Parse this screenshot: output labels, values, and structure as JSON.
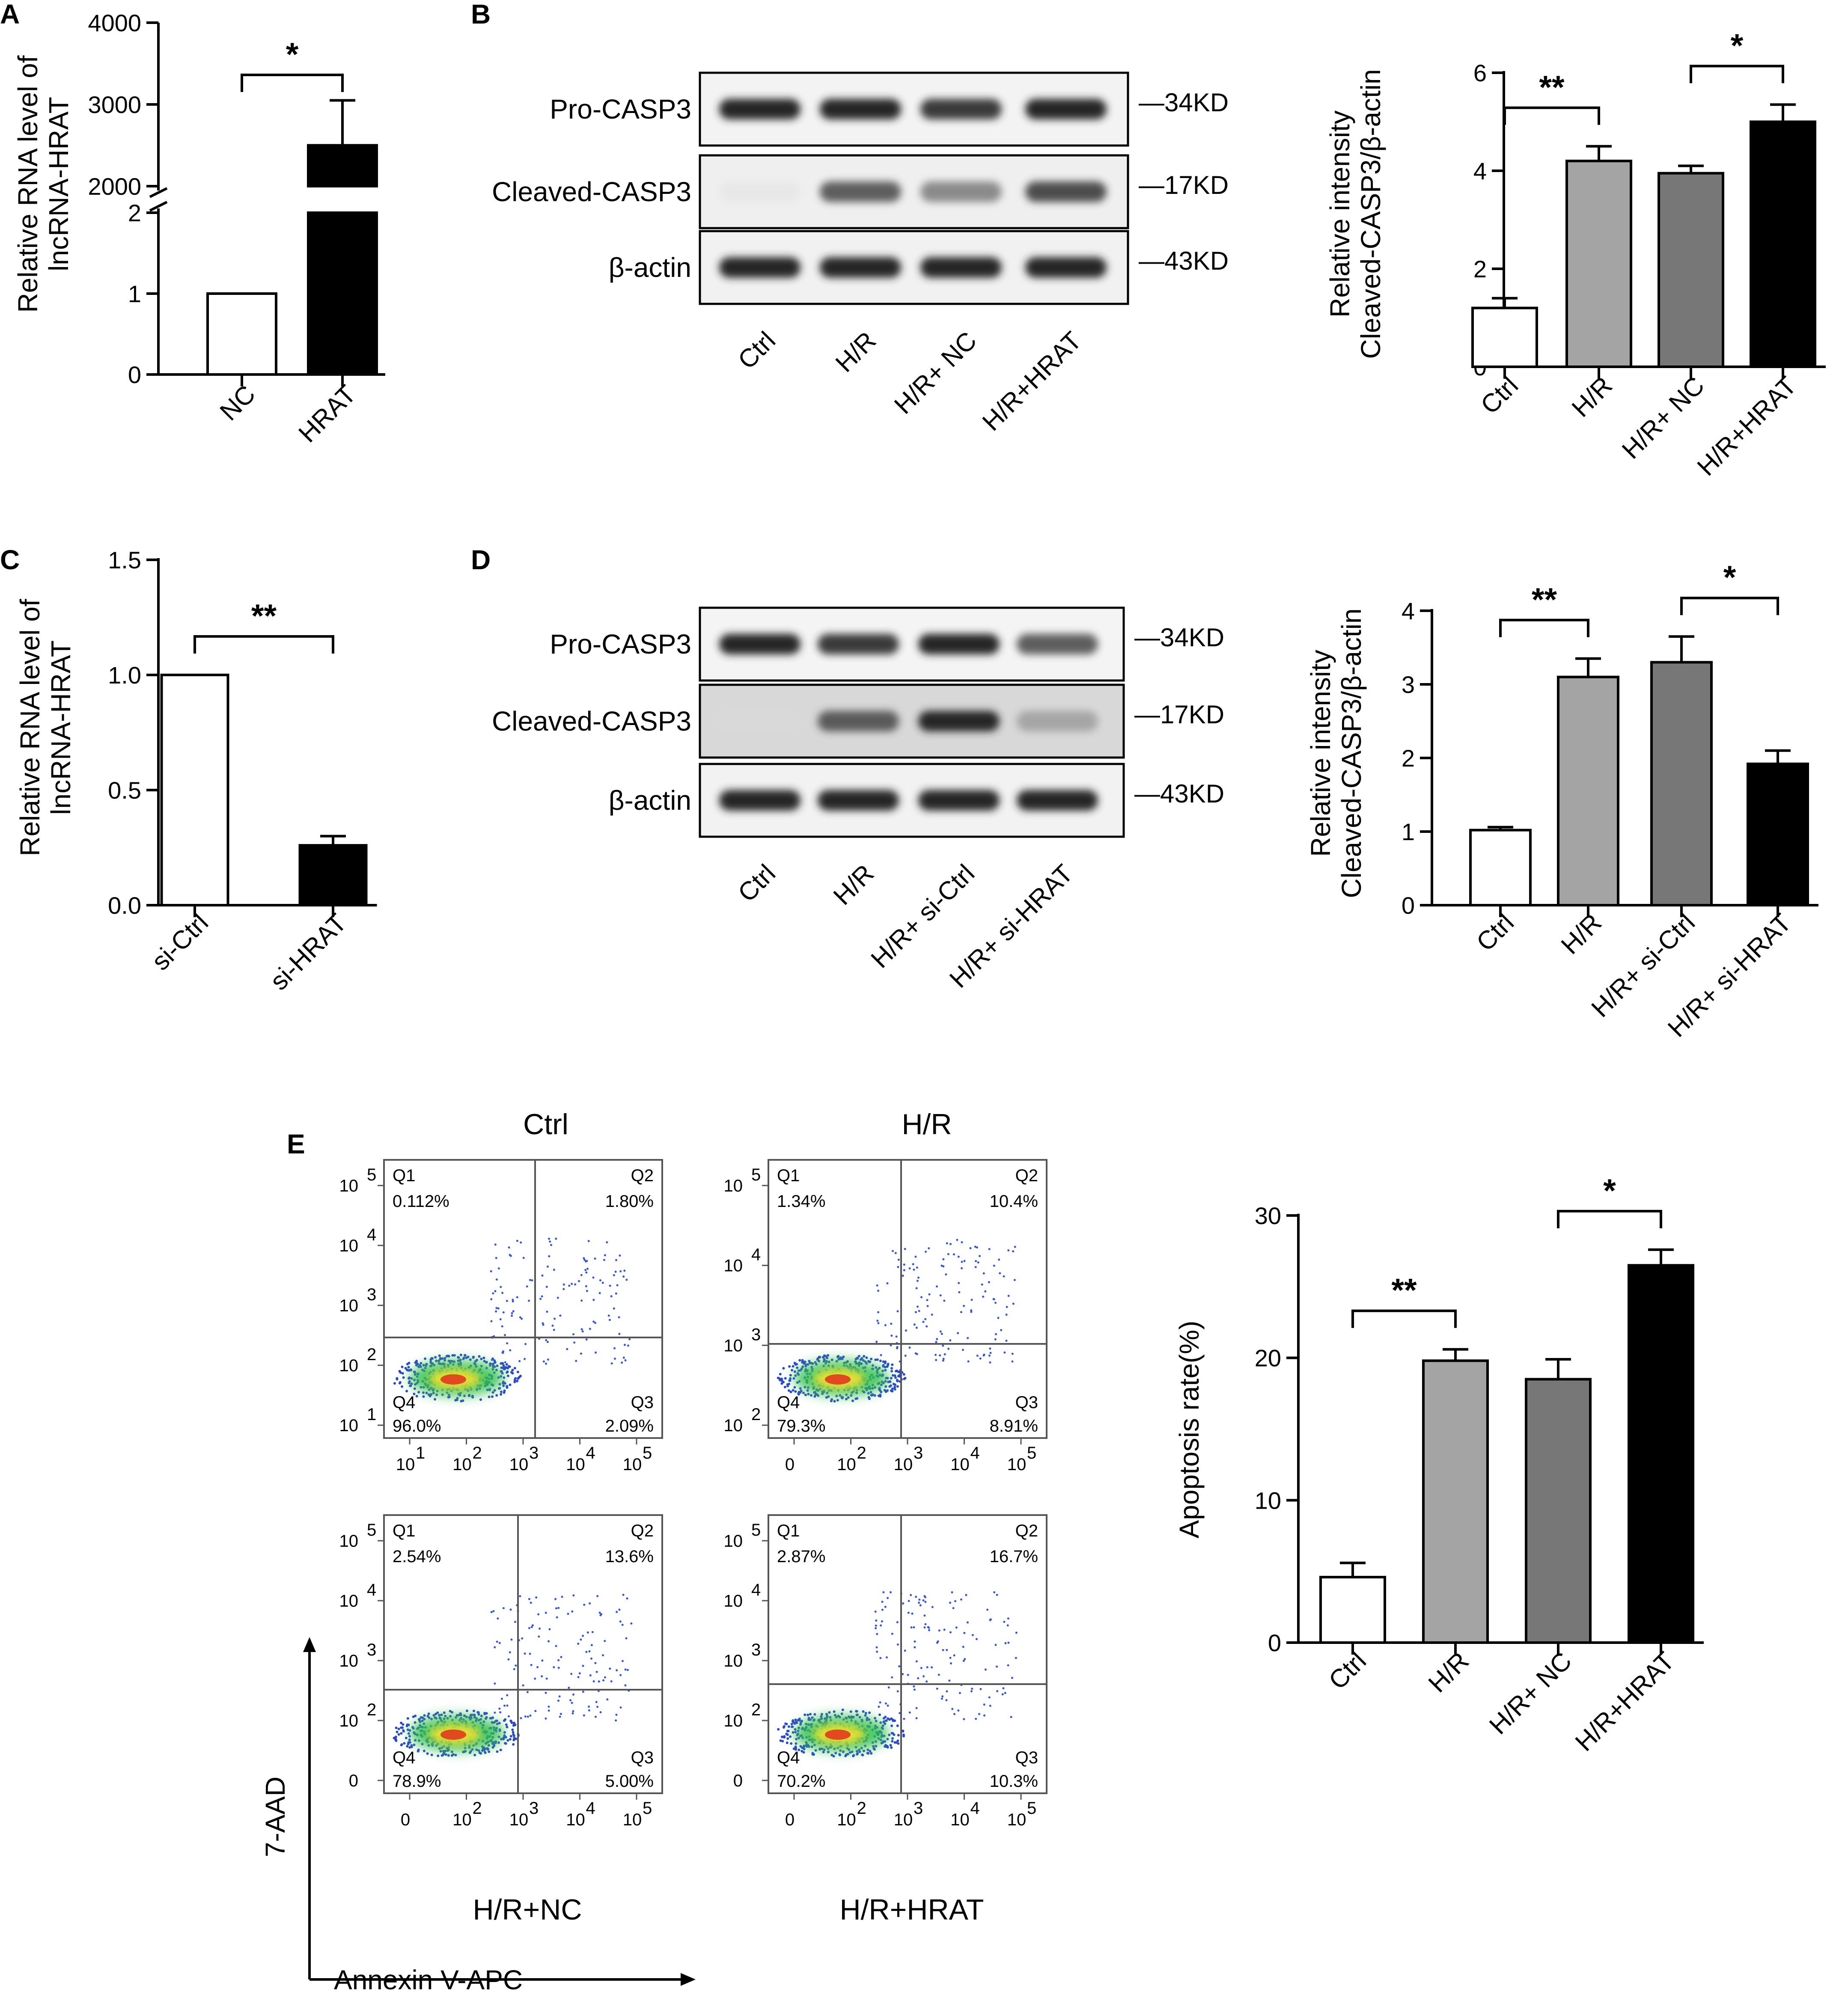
{
  "figure": {
    "panel_labels": {
      "a": "A",
      "b": "B",
      "c": "C",
      "d": "D",
      "e": "E"
    },
    "blot_bands": [
      "Pro-CASP3",
      "Cleaved-CASP3",
      "β-actin"
    ],
    "blot_kd": [
      "—34KD",
      "—17KD",
      "—43KD"
    ],
    "flow_axes": {
      "x": "Annexin V-APC",
      "y": "7-AAD"
    }
  },
  "chart_data": [
    {
      "id": "A",
      "type": "bar",
      "ylabel": "Relative RNA level of\nlncRNA-HRAT",
      "categories": [
        "NC",
        "HRAT"
      ],
      "values": [
        1,
        2500
      ],
      "errors": [
        0,
        550
      ],
      "broken_axis": {
        "lower": [
          0,
          2
        ],
        "upper": [
          2000,
          4000
        ]
      },
      "yticks_lower": [
        "0",
        "1",
        "2"
      ],
      "yticks_upper": [
        "2000",
        "3000",
        "4000"
      ],
      "bar_colors": [
        "#ffffff",
        "#000000"
      ],
      "significance": [
        {
          "between": [
            0,
            1
          ],
          "label": "*"
        }
      ]
    },
    {
      "id": "B",
      "type": "bar",
      "ylabel": "Relative intensity\nCleaved-CASP3/β-actin",
      "categories": [
        "Ctrl",
        "H/R",
        "H/R+ NC",
        "H/R+HRAT"
      ],
      "values": [
        1.2,
        4.2,
        3.95,
        5.0
      ],
      "errors": [
        0.2,
        0.3,
        0.15,
        0.35
      ],
      "ylim": [
        0,
        6
      ],
      "yticks": [
        "0",
        "2",
        "4",
        "6"
      ],
      "bar_colors": [
        "#ffffff",
        "#a4a4a4",
        "#777777",
        "#000000"
      ],
      "significance": [
        {
          "between": [
            0,
            1
          ],
          "label": "**"
        },
        {
          "between": [
            2,
            3
          ],
          "label": "*"
        }
      ]
    },
    {
      "id": "C",
      "type": "bar",
      "ylabel": "Relative RNA level of\nlncRNA-HRAT",
      "categories": [
        "si-Ctrl",
        "si-HRAT"
      ],
      "values": [
        1.0,
        0.26
      ],
      "errors": [
        0,
        0.04
      ],
      "ylim": [
        0,
        1.5
      ],
      "yticks": [
        "0.0",
        "0.5",
        "1.0",
        "1.5"
      ],
      "bar_colors": [
        "#ffffff",
        "#000000"
      ],
      "significance": [
        {
          "between": [
            0,
            1
          ],
          "label": "**"
        }
      ]
    },
    {
      "id": "D",
      "type": "bar",
      "ylabel": "Relative intensity\nCleaved-CASP3/β-actin",
      "categories": [
        "Ctrl",
        "H/R",
        "H/R+ si-Ctrl",
        "H/R+ si-HRAT"
      ],
      "values": [
        1.02,
        3.1,
        3.3,
        1.92
      ],
      "errors": [
        0.04,
        0.25,
        0.35,
        0.18
      ],
      "ylim": [
        0,
        4
      ],
      "yticks": [
        "0",
        "1",
        "2",
        "3",
        "4"
      ],
      "bar_colors": [
        "#ffffff",
        "#a4a4a4",
        "#777777",
        "#000000"
      ],
      "significance": [
        {
          "between": [
            0,
            1
          ],
          "label": "**"
        },
        {
          "between": [
            2,
            3
          ],
          "label": "*"
        }
      ]
    },
    {
      "id": "E",
      "type": "bar",
      "ylabel": "Apoptosis rate(%)",
      "categories": [
        "Ctrl",
        "H/R",
        "H/R+ NC",
        "H/R+HRAT"
      ],
      "values": [
        4.6,
        19.8,
        18.5,
        26.5
      ],
      "errors": [
        1.0,
        0.8,
        1.4,
        1.1
      ],
      "ylim": [
        0,
        30
      ],
      "yticks": [
        "0",
        "10",
        "20",
        "30"
      ],
      "bar_colors": [
        "#ffffff",
        "#a4a4a4",
        "#777777",
        "#000000"
      ],
      "significance": [
        {
          "between": [
            0,
            1
          ],
          "label": "**"
        },
        {
          "between": [
            2,
            3
          ],
          "label": "*"
        }
      ]
    }
  ],
  "blots": {
    "B": {
      "lanes": [
        "Ctrl",
        "H/R",
        "H/R+ NC",
        "H/R+HRAT"
      ],
      "intensity": {
        "pro": [
          1,
          1,
          0.95,
          1
        ],
        "cleaved": [
          0.1,
          0.85,
          0.7,
          0.9
        ],
        "actin": [
          1,
          1,
          1,
          1
        ]
      }
    },
    "D": {
      "lanes": [
        "Ctrl",
        "H/R",
        "H/R+ si-Ctrl",
        "H/R+ si-HRAT"
      ],
      "intensity": {
        "pro": [
          1,
          0.95,
          1,
          0.85
        ],
        "cleaved": [
          0.05,
          0.85,
          1,
          0.55
        ],
        "actin": [
          1,
          1,
          1,
          1
        ]
      }
    }
  },
  "flow": [
    {
      "title": "Ctrl",
      "quadrants": {
        "Q1": "0.112%",
        "Q2": "1.80%",
        "Q3": "2.09%",
        "Q4": "96.0%"
      },
      "yticks": [
        "10",
        "10",
        "10",
        "10",
        "10"
      ],
      "yexp": [
        "1",
        "2",
        "3",
        "4",
        "5"
      ],
      "xticks": [
        "10",
        "10",
        "10",
        "10",
        "10"
      ],
      "xexp": [
        "1",
        "2",
        "3",
        "4",
        "5"
      ]
    },
    {
      "title": "H/R",
      "quadrants": {
        "Q1": "1.34%",
        "Q2": "10.4%",
        "Q3": "8.91%",
        "Q4": "79.3%"
      },
      "yticks": [
        "10",
        "10",
        "10",
        "10"
      ],
      "yexp": [
        "2",
        "3",
        "4",
        "5"
      ],
      "xticks": [
        "0",
        "10",
        "10",
        "10",
        "10"
      ],
      "xexp": [
        "",
        "2",
        "3",
        "4",
        "5"
      ]
    },
    {
      "title": "H/R+NC",
      "quadrants": {
        "Q1": "2.54%",
        "Q2": "13.6%",
        "Q3": "5.00%",
        "Q4": "78.9%"
      },
      "yticks": [
        "0",
        "10",
        "10",
        "10",
        "10"
      ],
      "yexp": [
        "",
        "2",
        "3",
        "4",
        "5"
      ],
      "xticks": [
        "0",
        "10",
        "10",
        "10",
        "10"
      ],
      "xexp": [
        "",
        "2",
        "3",
        "4",
        "5"
      ]
    },
    {
      "title": "H/R+HRAT",
      "quadrants": {
        "Q1": "2.87%",
        "Q2": "16.7%",
        "Q3": "10.3%",
        "Q4": "70.2%"
      },
      "yticks": [
        "0",
        "10",
        "10",
        "10",
        "10"
      ],
      "yexp": [
        "",
        "2",
        "3",
        "4",
        "5"
      ],
      "xticks": [
        "0",
        "10",
        "10",
        "10",
        "10"
      ],
      "xexp": [
        "",
        "2",
        "3",
        "4",
        "5"
      ]
    }
  ]
}
